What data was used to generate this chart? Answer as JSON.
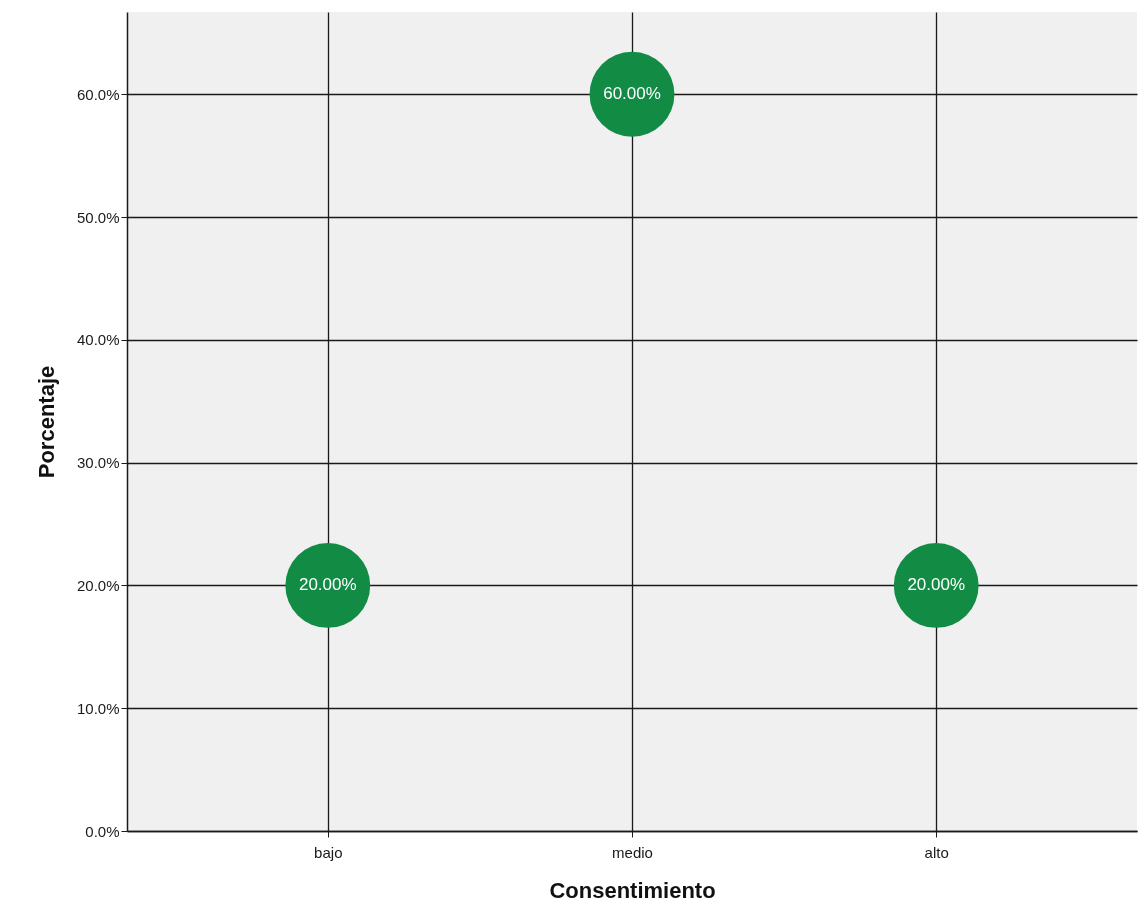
{
  "chart_data": {
    "type": "scatter",
    "xlabel": "Consentimiento",
    "ylabel": "Porcentaje",
    "categories": [
      "bajo",
      "medio",
      "alto"
    ],
    "values": [
      20,
      60,
      20
    ],
    "value_labels": [
      "20.00%",
      "60.00%",
      "20.00%"
    ],
    "color": "#128c44",
    "marker": "circle",
    "grid": true,
    "ylim": [
      0,
      66.7
    ],
    "yticks": [
      {
        "value": 0,
        "label": "0.0%"
      },
      {
        "value": 10,
        "label": "10.0%"
      },
      {
        "value": 20,
        "label": "20.0%"
      },
      {
        "value": 30,
        "label": "30.0%"
      },
      {
        "value": 40,
        "label": "40.0%"
      },
      {
        "value": 50,
        "label": "50.0%"
      },
      {
        "value": 60,
        "label": "60.0%"
      }
    ]
  }
}
